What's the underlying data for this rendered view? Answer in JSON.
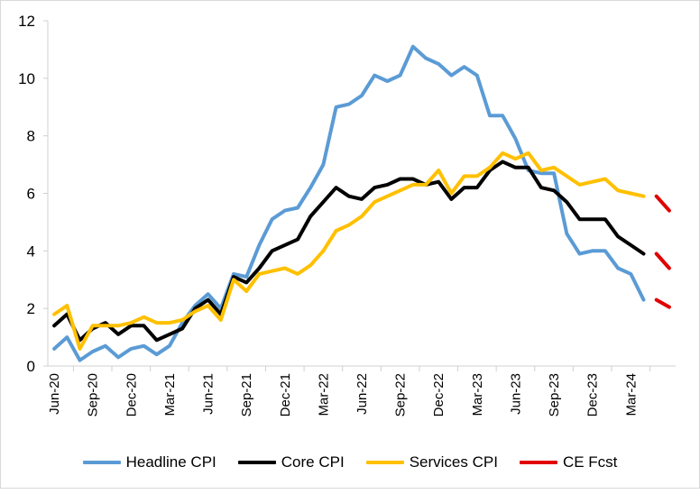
{
  "chart_data": {
    "type": "line",
    "title": "",
    "xlabel": "",
    "ylabel": "",
    "ylim": [
      0,
      12
    ],
    "yticks": [
      "0",
      "2",
      "4",
      "6",
      "8",
      "10",
      "12"
    ],
    "grid": false,
    "legend_position": "bottom",
    "x": [
      "Jun-20",
      "Jul-20",
      "Aug-20",
      "Sep-20",
      "Oct-20",
      "Nov-20",
      "Dec-20",
      "Jan-21",
      "Feb-21",
      "Mar-21",
      "Apr-21",
      "May-21",
      "Jun-21",
      "Jul-21",
      "Aug-21",
      "Sep-21",
      "Oct-21",
      "Nov-21",
      "Dec-21",
      "Jan-22",
      "Feb-22",
      "Mar-22",
      "Apr-22",
      "May-22",
      "Jun-22",
      "Jul-22",
      "Aug-22",
      "Sep-22",
      "Oct-22",
      "Nov-22",
      "Dec-22",
      "Jan-23",
      "Feb-23",
      "Mar-23",
      "Apr-23",
      "May-23",
      "Jun-23",
      "Jul-23",
      "Aug-23",
      "Sep-23",
      "Oct-23",
      "Nov-23",
      "Dec-23",
      "Jan-24",
      "Feb-24",
      "Mar-24",
      "Apr-24",
      "May-24",
      "Jun-24"
    ],
    "xtick_labels": [
      "Jun-20",
      "Sep-20",
      "Dec-20",
      "Mar-21",
      "Jun-21",
      "Sep-21",
      "Dec-21",
      "Mar-22",
      "Jun-22",
      "Sep-22",
      "Dec-22",
      "Mar-23",
      "Jun-23",
      "Sep-23",
      "Dec-23",
      "Mar-24"
    ],
    "series": [
      {
        "name": "Headline CPI",
        "color": "#5b9bd5",
        "values": [
          0.6,
          1.0,
          0.2,
          0.5,
          0.7,
          0.3,
          0.6,
          0.7,
          0.4,
          0.7,
          1.5,
          2.1,
          2.5,
          2.0,
          3.2,
          3.1,
          4.2,
          5.1,
          5.4,
          5.5,
          6.2,
          7.0,
          9.0,
          9.1,
          9.4,
          10.1,
          9.9,
          10.1,
          11.1,
          10.7,
          10.5,
          10.1,
          10.4,
          10.1,
          8.7,
          8.7,
          7.9,
          6.8,
          6.7,
          6.7,
          4.6,
          3.9,
          4.0,
          4.0,
          3.4,
          3.2,
          2.3,
          null,
          null
        ]
      },
      {
        "name": "Core CPI",
        "color": "#000000",
        "values": [
          1.4,
          1.8,
          0.9,
          1.3,
          1.5,
          1.1,
          1.4,
          1.4,
          0.9,
          1.1,
          1.3,
          2.0,
          2.3,
          1.8,
          3.1,
          2.9,
          3.4,
          4.0,
          4.2,
          4.4,
          5.2,
          5.7,
          6.2,
          5.9,
          5.8,
          6.2,
          6.3,
          6.5,
          6.5,
          6.3,
          6.4,
          5.8,
          6.2,
          6.2,
          6.8,
          7.1,
          6.9,
          6.9,
          6.2,
          6.1,
          5.7,
          5.1,
          5.1,
          5.1,
          4.5,
          4.2,
          3.9,
          null,
          null
        ]
      },
      {
        "name": "Services CPI",
        "color": "#ffc000",
        "values": [
          1.8,
          2.1,
          0.6,
          1.4,
          1.4,
          1.4,
          1.5,
          1.7,
          1.5,
          1.5,
          1.6,
          1.9,
          2.1,
          1.6,
          3.0,
          2.6,
          3.2,
          3.3,
          3.4,
          3.2,
          3.5,
          4.0,
          4.7,
          4.9,
          5.2,
          5.7,
          5.9,
          6.1,
          6.3,
          6.3,
          6.8,
          6.0,
          6.6,
          6.6,
          6.9,
          7.4,
          7.2,
          7.4,
          6.8,
          6.9,
          6.6,
          6.3,
          6.4,
          6.5,
          6.1,
          6.0,
          5.9,
          null,
          null
        ]
      },
      {
        "name": "CE Fcst",
        "color": "#e00000",
        "segments": [
          {
            "x": [
              "May-24",
              "Jun-24"
            ],
            "values": [
              5.9,
              5.4
            ]
          },
          {
            "x": [
              "May-24",
              "Jun-24"
            ],
            "values": [
              3.9,
              3.4
            ]
          },
          {
            "x": [
              "May-24",
              "Jun-24"
            ],
            "values": [
              2.3,
              2.05
            ]
          }
        ]
      }
    ]
  }
}
